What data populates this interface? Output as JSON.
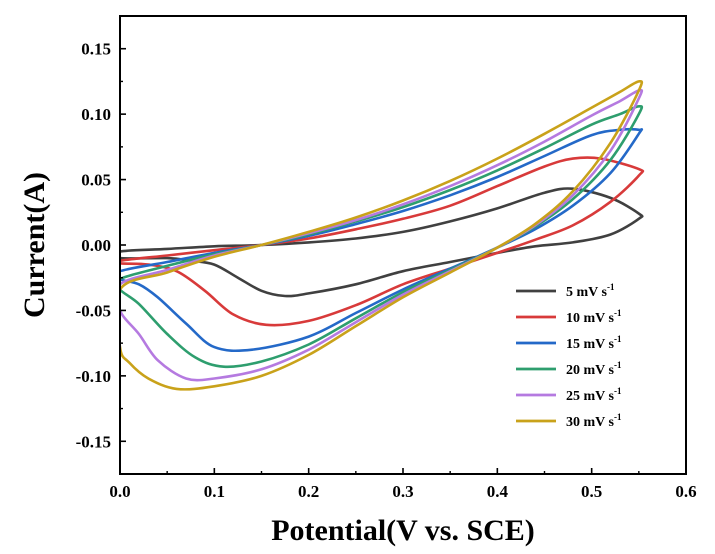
{
  "chart_data": {
    "type": "line",
    "xlabel": "Potential(V vs. SCE)",
    "ylabel": "Current(A)",
    "xlim": [
      0.0,
      0.6
    ],
    "ylim": [
      -0.175,
      0.175
    ],
    "xticks": [
      "0.0",
      "0.1",
      "0.2",
      "0.3",
      "0.4",
      "0.5",
      "0.6"
    ],
    "yticks": [
      "-0.15",
      "-0.10",
      "-0.05",
      "0.00",
      "0.05",
      "0.10",
      "0.15"
    ],
    "grid": false,
    "legend_position": "bottom-right",
    "series": [
      {
        "name": "5 mV s",
        "unit_sup": "-1",
        "color": "#404040",
        "points": [
          [
            0.0,
            -0.005
          ],
          [
            0.05,
            -0.003
          ],
          [
            0.1,
            -0.001
          ],
          [
            0.15,
            0.0
          ],
          [
            0.2,
            0.002
          ],
          [
            0.25,
            0.005
          ],
          [
            0.3,
            0.01
          ],
          [
            0.35,
            0.018
          ],
          [
            0.4,
            0.028
          ],
          [
            0.45,
            0.04
          ],
          [
            0.48,
            0.043
          ],
          [
            0.52,
            0.036
          ],
          [
            0.55,
            0.024
          ],
          [
            0.55,
            0.02
          ],
          [
            0.52,
            0.008
          ],
          [
            0.48,
            0.002
          ],
          [
            0.44,
            -0.001
          ],
          [
            0.4,
            -0.006
          ],
          [
            0.35,
            -0.013
          ],
          [
            0.3,
            -0.02
          ],
          [
            0.25,
            -0.03
          ],
          [
            0.2,
            -0.037
          ],
          [
            0.175,
            -0.039
          ],
          [
            0.15,
            -0.035
          ],
          [
            0.125,
            -0.025
          ],
          [
            0.1,
            -0.015
          ],
          [
            0.075,
            -0.012
          ],
          [
            0.05,
            -0.01
          ],
          [
            0.0,
            -0.01
          ]
        ]
      },
      {
        "name": "10 mV s",
        "unit_sup": "-1",
        "color": "#d83a3a",
        "points": [
          [
            0.0,
            -0.012
          ],
          [
            0.05,
            -0.008
          ],
          [
            0.1,
            -0.004
          ],
          [
            0.15,
            0.0
          ],
          [
            0.2,
            0.005
          ],
          [
            0.25,
            0.012
          ],
          [
            0.3,
            0.02
          ],
          [
            0.35,
            0.03
          ],
          [
            0.4,
            0.045
          ],
          [
            0.45,
            0.06
          ],
          [
            0.48,
            0.066
          ],
          [
            0.51,
            0.066
          ],
          [
            0.55,
            0.058
          ],
          [
            0.55,
            0.053
          ],
          [
            0.52,
            0.033
          ],
          [
            0.48,
            0.015
          ],
          [
            0.44,
            0.004
          ],
          [
            0.4,
            -0.006
          ],
          [
            0.35,
            -0.018
          ],
          [
            0.3,
            -0.03
          ],
          [
            0.25,
            -0.046
          ],
          [
            0.2,
            -0.058
          ],
          [
            0.155,
            -0.061
          ],
          [
            0.12,
            -0.053
          ],
          [
            0.09,
            -0.035
          ],
          [
            0.06,
            -0.02
          ],
          [
            0.03,
            -0.015
          ],
          [
            0.0,
            -0.014
          ]
        ]
      },
      {
        "name": "15 mV s",
        "unit_sup": "-1",
        "color": "#2469c8",
        "points": [
          [
            0.0,
            -0.02
          ],
          [
            0.05,
            -0.013
          ],
          [
            0.1,
            -0.006
          ],
          [
            0.15,
            0.0
          ],
          [
            0.2,
            0.007
          ],
          [
            0.25,
            0.016
          ],
          [
            0.3,
            0.026
          ],
          [
            0.35,
            0.038
          ],
          [
            0.4,
            0.052
          ],
          [
            0.45,
            0.068
          ],
          [
            0.5,
            0.084
          ],
          [
            0.53,
            0.088
          ],
          [
            0.55,
            0.088
          ],
          [
            0.55,
            0.085
          ],
          [
            0.52,
            0.055
          ],
          [
            0.48,
            0.03
          ],
          [
            0.44,
            0.012
          ],
          [
            0.4,
            -0.002
          ],
          [
            0.35,
            -0.018
          ],
          [
            0.3,
            -0.034
          ],
          [
            0.25,
            -0.052
          ],
          [
            0.2,
            -0.07
          ],
          [
            0.14,
            -0.08
          ],
          [
            0.1,
            -0.078
          ],
          [
            0.07,
            -0.06
          ],
          [
            0.04,
            -0.04
          ],
          [
            0.02,
            -0.03
          ],
          [
            0.0,
            -0.026
          ]
        ]
      },
      {
        "name": "20 mV s",
        "unit_sup": "-1",
        "color": "#2e9e6e",
        "points": [
          [
            0.0,
            -0.026
          ],
          [
            0.05,
            -0.016
          ],
          [
            0.1,
            -0.007
          ],
          [
            0.15,
            0.0
          ],
          [
            0.2,
            0.008
          ],
          [
            0.25,
            0.018
          ],
          [
            0.3,
            0.029
          ],
          [
            0.35,
            0.042
          ],
          [
            0.4,
            0.057
          ],
          [
            0.45,
            0.074
          ],
          [
            0.5,
            0.092
          ],
          [
            0.53,
            0.1
          ],
          [
            0.55,
            0.106
          ],
          [
            0.55,
            0.1
          ],
          [
            0.52,
            0.065
          ],
          [
            0.48,
            0.035
          ],
          [
            0.44,
            0.014
          ],
          [
            0.4,
            -0.002
          ],
          [
            0.35,
            -0.019
          ],
          [
            0.3,
            -0.036
          ],
          [
            0.25,
            -0.056
          ],
          [
            0.2,
            -0.076
          ],
          [
            0.15,
            -0.089
          ],
          [
            0.11,
            -0.093
          ],
          [
            0.08,
            -0.086
          ],
          [
            0.05,
            -0.068
          ],
          [
            0.02,
            -0.045
          ],
          [
            0.0,
            -0.034
          ]
        ]
      },
      {
        "name": "25 mV s",
        "unit_sup": "-1",
        "color": "#b57ae0",
        "points": [
          [
            0.0,
            -0.03
          ],
          [
            0.05,
            -0.019
          ],
          [
            0.1,
            -0.008
          ],
          [
            0.15,
            0.0
          ],
          [
            0.2,
            0.009
          ],
          [
            0.25,
            0.019
          ],
          [
            0.3,
            0.031
          ],
          [
            0.35,
            0.045
          ],
          [
            0.4,
            0.061
          ],
          [
            0.45,
            0.079
          ],
          [
            0.5,
            0.099
          ],
          [
            0.53,
            0.11
          ],
          [
            0.55,
            0.118
          ],
          [
            0.55,
            0.112
          ],
          [
            0.52,
            0.072
          ],
          [
            0.48,
            0.038
          ],
          [
            0.44,
            0.015
          ],
          [
            0.4,
            -0.002
          ],
          [
            0.35,
            -0.02
          ],
          [
            0.3,
            -0.038
          ],
          [
            0.25,
            -0.059
          ],
          [
            0.2,
            -0.08
          ],
          [
            0.15,
            -0.095
          ],
          [
            0.1,
            -0.102
          ],
          [
            0.07,
            -0.102
          ],
          [
            0.04,
            -0.088
          ],
          [
            0.02,
            -0.068
          ],
          [
            0.0,
            -0.05
          ]
        ]
      },
      {
        "name": "30 mV s",
        "unit_sup": "-1",
        "color": "#c9a21a",
        "points": [
          [
            0.0,
            -0.034
          ],
          [
            0.05,
            -0.021
          ],
          [
            0.1,
            -0.009
          ],
          [
            0.15,
            0.0
          ],
          [
            0.2,
            0.01
          ],
          [
            0.25,
            0.021
          ],
          [
            0.3,
            0.034
          ],
          [
            0.35,
            0.049
          ],
          [
            0.4,
            0.066
          ],
          [
            0.45,
            0.085
          ],
          [
            0.5,
            0.105
          ],
          [
            0.53,
            0.117
          ],
          [
            0.55,
            0.125
          ],
          [
            0.55,
            0.118
          ],
          [
            0.52,
            0.078
          ],
          [
            0.48,
            0.041
          ],
          [
            0.44,
            0.016
          ],
          [
            0.4,
            -0.002
          ],
          [
            0.35,
            -0.021
          ],
          [
            0.3,
            -0.04
          ],
          [
            0.25,
            -0.062
          ],
          [
            0.2,
            -0.084
          ],
          [
            0.15,
            -0.1
          ],
          [
            0.1,
            -0.108
          ],
          [
            0.06,
            -0.11
          ],
          [
            0.03,
            -0.102
          ],
          [
            0.01,
            -0.09
          ],
          [
            0.0,
            -0.078
          ]
        ]
      }
    ]
  }
}
